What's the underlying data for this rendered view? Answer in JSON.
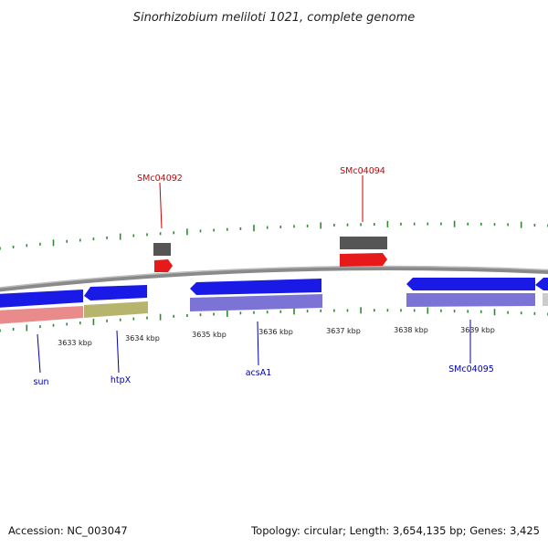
{
  "title": "Sinorhizobium meliloti 1021, complete genome",
  "footer": {
    "accession": "Accession: NC_003047",
    "summary": "Topology: circular; Length: 3,654,135 bp; Genes: 3,425"
  },
  "colors": {
    "backbone": "#8a8a8a",
    "minor_tick": "#2e8b2e",
    "reverse_gene": "#1a1ae6",
    "reverse_gene_light": "#7b74d6",
    "forward_gene": "#e61a1a",
    "forward_gene_dark": "#555555",
    "ribbon_pink": "#e98b8b",
    "ribbon_olive": "#b7b46e",
    "label_red": "#cc0000",
    "label_blue": "#0000aa"
  },
  "chart_data": {
    "type": "genome-map",
    "axis_unit": "kbp",
    "ticks": [
      {
        "kbp": 3633,
        "label": "3633 kbp"
      },
      {
        "kbp": 3634,
        "label": "3634 kbp"
      },
      {
        "kbp": 3635,
        "label": "3635 kbp"
      },
      {
        "kbp": 3636,
        "label": "3636 kbp"
      },
      {
        "kbp": 3637,
        "label": "3637 kbp"
      },
      {
        "kbp": 3638,
        "label": "3638 kbp"
      },
      {
        "kbp": 3639,
        "label": "3639 kbp"
      }
    ],
    "gene_labels": [
      {
        "name": "SMc04092",
        "strand": "forward"
      },
      {
        "name": "SMc04094",
        "strand": "forward"
      },
      {
        "name": "sun",
        "strand": "reverse"
      },
      {
        "name": "htpX",
        "strand": "reverse"
      },
      {
        "name": "acsA1",
        "strand": "reverse"
      },
      {
        "name": "SMc04095",
        "strand": "reverse"
      }
    ]
  }
}
